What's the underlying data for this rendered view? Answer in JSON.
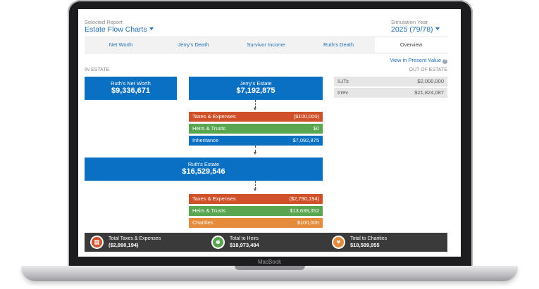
{
  "report": {
    "label": "Selected Report",
    "value": "Estate Flow Charts"
  },
  "simulation": {
    "label": "Simulation Year",
    "value": "2025 (79/78)"
  },
  "tabs": [
    {
      "label": "Net Worth"
    },
    {
      "label": "Jerry's Death"
    },
    {
      "label": "Survivor Income"
    },
    {
      "label": "Ruth's Death"
    },
    {
      "label": "Overview"
    }
  ],
  "view_present_value": "View in Present Value",
  "in_estate_label": "IN ESTATE",
  "out_of_estate_label": "OUT OF ESTATE",
  "ruth_net_worth": {
    "label": "Ruth's Net Worth",
    "value": "$9,336,671"
  },
  "jerry_estate": {
    "label": "Jerry's Estate",
    "value": "$7,192,875"
  },
  "jerry_rows": [
    {
      "label": "Taxes & Expenses",
      "value": "($100,000)",
      "color": "#d0502a"
    },
    {
      "label": "Heirs & Trusts",
      "value": "$0",
      "color": "#5aa550"
    },
    {
      "label": "Inheritance",
      "value": "$7,092,875",
      "color": "#0a70c2"
    }
  ],
  "ruth_estate": {
    "label": "Ruth's Estate",
    "value": "$16,529,546"
  },
  "ruth_rows": [
    {
      "label": "Taxes & Expenses",
      "value": "($2,790,194)",
      "color": "#d0502a"
    },
    {
      "label": "Heirs & Trusts",
      "value": "$13,639,352",
      "color": "#5aa550"
    },
    {
      "label": "Charities",
      "value": "$100,000",
      "color": "#e48c3c"
    }
  ],
  "out_of_estate": [
    {
      "label": "ILITs",
      "value": "$2,000,000"
    },
    {
      "label": "Irrev",
      "value": "$21,824,087"
    }
  ],
  "totals": [
    {
      "label": "Total Taxes & Expenses",
      "value": "($2,890,194)",
      "icon": "calculator-icon",
      "color": "#d0502a"
    },
    {
      "label": "Total to Heirs",
      "value": "$18,973,484",
      "icon": "people-icon",
      "color": "#5aa550"
    },
    {
      "label": "Total to Charities",
      "value": "$18,589,955",
      "icon": "heart-icon",
      "color": "#e48c3c"
    }
  ],
  "laptop_brand": "MacBook"
}
